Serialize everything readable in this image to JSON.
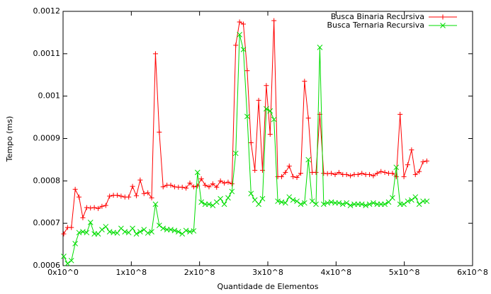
{
  "chart_data": {
    "type": "line",
    "xlabel": "Quantidade de Elementos",
    "ylabel": "Tempo (ms)",
    "xlim": [
      0,
      600000000.0
    ],
    "ylim": [
      0.0006,
      0.0012
    ],
    "xticks": [
      {
        "value": 0,
        "label": "0x10^0"
      },
      {
        "value": 100000000.0,
        "label": "1x10^8"
      },
      {
        "value": 200000000.0,
        "label": "2x10^8"
      },
      {
        "value": 300000000.0,
        "label": "3x10^8"
      },
      {
        "value": 400000000.0,
        "label": "4x10^8"
      },
      {
        "value": 500000000.0,
        "label": "5x10^8"
      },
      {
        "value": 600000000.0,
        "label": "6x10^8"
      }
    ],
    "yticks": [
      0.0006,
      0.0007,
      0.0008,
      0.0009,
      0.001,
      0.0011,
      0.0012
    ],
    "legend": "top-right",
    "x": [
      1000000.0,
      6600000.0,
      12200000.0,
      17800000.0,
      23400000.0,
      29000000.0,
      34600000.0,
      40200000.0,
      45800000.0,
      51400000.0,
      57000000.0,
      62600000.0,
      68200000.0,
      73800000.0,
      79400000.0,
      85000000.0,
      90600000.0,
      96200000.0,
      101800000.0,
      107400000.0,
      113000000.0,
      118600000.0,
      124200000.0,
      129800000.0,
      135400000.0,
      141000000.0,
      146600000.0,
      152200000.0,
      157800000.0,
      163400000.0,
      169000000.0,
      174600000.0,
      180200000.0,
      185800000.0,
      191400000.0,
      197000000.0,
      202600000.0,
      208200000.0,
      213800000.0,
      219400000.0,
      225000000.0,
      230600000.0,
      236200000.0,
      241800000.0,
      247400000.0,
      253000000.0,
      258600000.0,
      264200000.0,
      269800000.0,
      275400000.0,
      281000000.0,
      286600000.0,
      292200000.0,
      297800000.0,
      303400000.0,
      309000000.0,
      314600000.0,
      320200000.0,
      325800000.0,
      331400000.0,
      337000000.0,
      342600000.0,
      348200000.0,
      353800000.0,
      359400000.0,
      365000000.0,
      370600000.0,
      376200000.0,
      381800000.0,
      387400000.0,
      393000000.0,
      398600000.0,
      404200000.0,
      409800000.0,
      415400000.0,
      421000000.0,
      426600000.0,
      432200000.0,
      437800000.0,
      443400000.0,
      449000000.0,
      454600000.0,
      460200000.0,
      465800000.0,
      471400000.0,
      477000000.0,
      482600000.0,
      488200000.0,
      493800000.0,
      499400000.0,
      505000000.0,
      510600000.0,
      516200000.0,
      521800000.0,
      527400000.0,
      533000000.0
    ],
    "series": [
      {
        "name": "Busca Binaria Recursiva",
        "color": "#ff0000",
        "marker": "plus",
        "values": [
          0.000675,
          0.00069,
          0.00069,
          0.00078,
          0.000762,
          0.000713,
          0.000737,
          0.000736,
          0.000737,
          0.000735,
          0.00074,
          0.000742,
          0.000764,
          0.000766,
          0.000766,
          0.000764,
          0.000762,
          0.000762,
          0.000787,
          0.000765,
          0.000802,
          0.00077,
          0.000772,
          0.00076,
          0.0011,
          0.000915,
          0.000786,
          0.00079,
          0.00079,
          0.000786,
          0.000785,
          0.000785,
          0.000783,
          0.000795,
          0.000786,
          0.000788,
          0.000805,
          0.00079,
          0.000786,
          0.000793,
          0.000785,
          0.0008,
          0.000795,
          0.000797,
          0.000793,
          0.00112,
          0.001175,
          0.00117,
          0.00106,
          0.00089,
          0.000825,
          0.00099,
          0.000825,
          0.001025,
          0.00091,
          0.001178,
          0.00081,
          0.00081,
          0.00082,
          0.000835,
          0.00081,
          0.000808,
          0.000818,
          0.001035,
          0.000948,
          0.00082,
          0.00082,
          0.000957,
          0.000818,
          0.000817,
          0.000818,
          0.000815,
          0.00082,
          0.000815,
          0.000815,
          0.000812,
          0.000815,
          0.000815,
          0.000818,
          0.000815,
          0.000815,
          0.000812,
          0.000818,
          0.000822,
          0.00082,
          0.000818,
          0.000818,
          0.00081,
          0.000957,
          0.00081,
          0.000838,
          0.000873,
          0.000815,
          0.000822,
          0.000845,
          0.000847
        ]
      },
      {
        "name": "Busca Ternaria Recursiva",
        "color": "#00dd00",
        "marker": "cross",
        "values": [
          0.000622,
          0.000605,
          0.000612,
          0.000652,
          0.000678,
          0.00068,
          0.000678,
          0.000702,
          0.000675,
          0.000675,
          0.000685,
          0.000692,
          0.00068,
          0.000678,
          0.000677,
          0.000688,
          0.00068,
          0.000678,
          0.000688,
          0.000675,
          0.00068,
          0.000685,
          0.000677,
          0.00068,
          0.000745,
          0.000695,
          0.000688,
          0.000685,
          0.000685,
          0.000683,
          0.00068,
          0.000675,
          0.000683,
          0.00068,
          0.000682,
          0.00082,
          0.00075,
          0.000745,
          0.000745,
          0.000742,
          0.00075,
          0.000758,
          0.000745,
          0.00076,
          0.000775,
          0.000865,
          0.001145,
          0.00111,
          0.000952,
          0.00077,
          0.000755,
          0.000745,
          0.000758,
          0.00097,
          0.000965,
          0.000945,
          0.000752,
          0.00075,
          0.000748,
          0.000762,
          0.000755,
          0.000752,
          0.000745,
          0.000748,
          0.00085,
          0.000752,
          0.000745,
          0.001115,
          0.000745,
          0.000748,
          0.00075,
          0.000748,
          0.000748,
          0.000745,
          0.000748,
          0.000742,
          0.000745,
          0.000745,
          0.000745,
          0.000742,
          0.000745,
          0.000748,
          0.000745,
          0.000745,
          0.000745,
          0.00075,
          0.00076,
          0.000832,
          0.000745,
          0.000745,
          0.000752,
          0.000755,
          0.000762,
          0.000745,
          0.000752,
          0.000752
        ]
      }
    ]
  }
}
